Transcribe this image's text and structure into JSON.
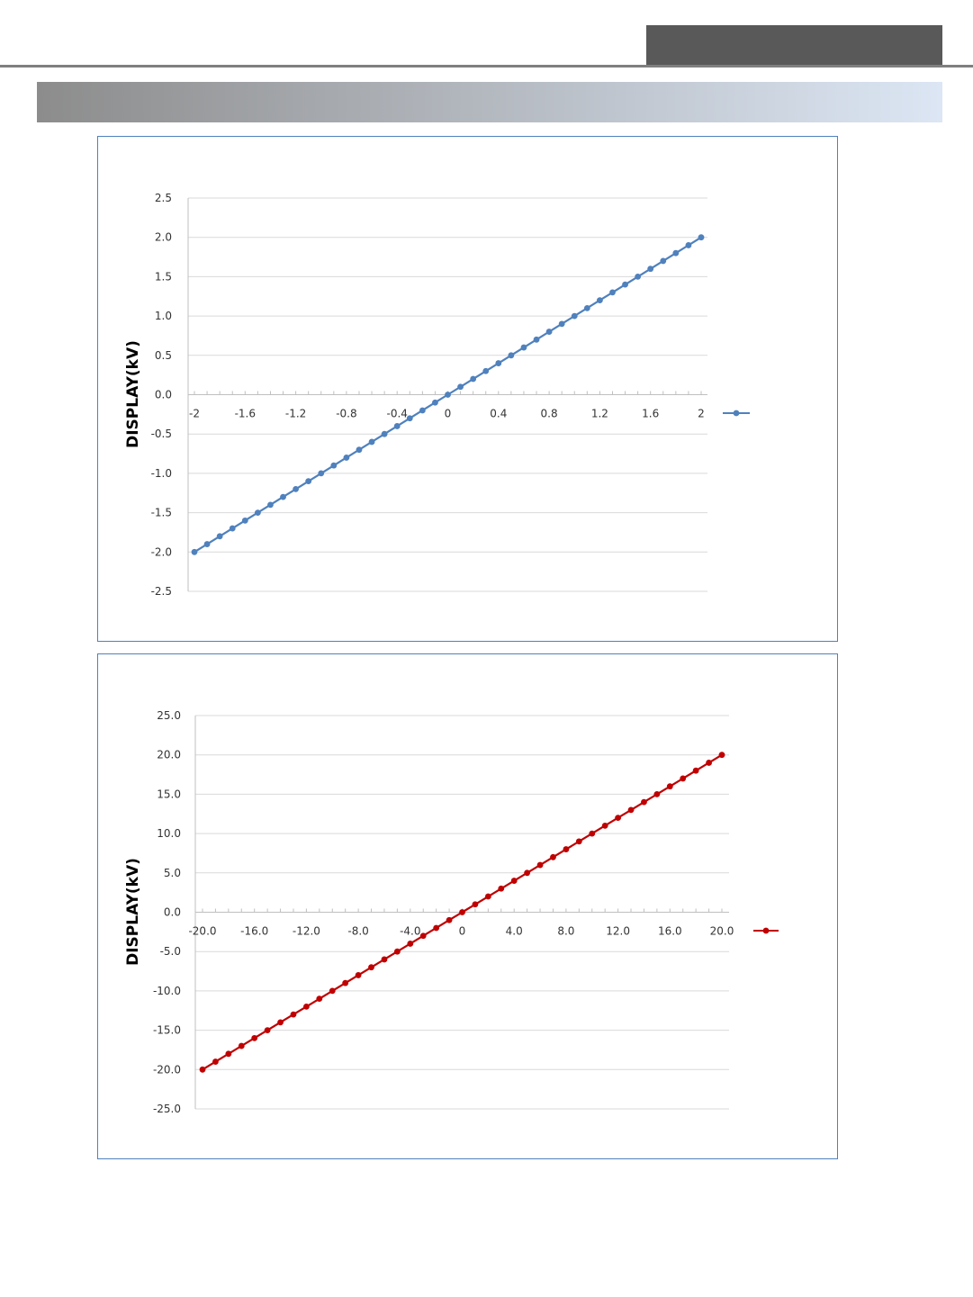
{
  "page": {
    "header_tab_color": "#595959",
    "header_rule_color": "#7f7f7f",
    "section_band_gradient": [
      "#8c8c8c",
      "#dce6f4"
    ],
    "frame_border_color": "#4f81bd"
  },
  "chart_data": [
    {
      "type": "line",
      "title": "",
      "xlabel": "",
      "ylabel": "DISPLAY(kV)",
      "x_ticks": [
        -2,
        -1.6,
        -1.2,
        -0.8,
        -0.4,
        0,
        0.4,
        0.8,
        1.2,
        1.6,
        2
      ],
      "x_tick_labels": [
        "-2",
        "-1.6",
        "-1.2",
        "-0.8",
        "-0.4",
        "0",
        "0.4",
        "0.8",
        "1.2",
        "1.6",
        "2"
      ],
      "y_ticks": [
        2.5,
        2.0,
        1.5,
        1.0,
        0.5,
        0.0,
        -0.5,
        -1.0,
        -1.5,
        -2.0,
        -2.5
      ],
      "y_tick_labels": [
        "2.5",
        "2.0",
        "1.5",
        "1.0",
        "0.5",
        "0.0",
        "-0.5",
        "-1.0",
        "-1.5",
        "-2.0",
        "-2.5"
      ],
      "xlim": [
        -2,
        2
      ],
      "ylim": [
        -2.5,
        2.5
      ],
      "grid": "horizontal",
      "legend": "right",
      "color": "#4f81bd",
      "series": [
        {
          "x": [
            -2.0,
            -1.9,
            -1.8,
            -1.7,
            -1.6,
            -1.5,
            -1.4,
            -1.3,
            -1.2,
            -1.1,
            -1.0,
            -0.9,
            -0.8,
            -0.7,
            -0.6,
            -0.5,
            -0.4,
            -0.3,
            -0.2,
            -0.1,
            0.0,
            0.1,
            0.2,
            0.3,
            0.4,
            0.5,
            0.6,
            0.7,
            0.8,
            0.9,
            1.0,
            1.1,
            1.2,
            1.3,
            1.4,
            1.5,
            1.6,
            1.7,
            1.8,
            1.9,
            2.0
          ],
          "y": [
            -2.0,
            -1.9,
            -1.8,
            -1.7,
            -1.6,
            -1.5,
            -1.4,
            -1.3,
            -1.2,
            -1.1,
            -1.0,
            -0.9,
            -0.8,
            -0.7,
            -0.6,
            -0.5,
            -0.4,
            -0.3,
            -0.2,
            -0.1,
            0.0,
            0.1,
            0.2,
            0.3,
            0.4,
            0.5,
            0.6,
            0.7,
            0.8,
            0.9,
            1.0,
            1.1,
            1.2,
            1.3,
            1.4,
            1.5,
            1.6,
            1.7,
            1.8,
            1.9,
            2.0
          ]
        }
      ]
    },
    {
      "type": "line",
      "title": "",
      "xlabel": "",
      "ylabel": "DISPLAY(kV)",
      "x_ticks": [
        -20,
        -16,
        -12,
        -8,
        -4,
        0,
        4,
        8,
        12,
        16,
        20
      ],
      "x_tick_labels": [
        "-20.0",
        "-16.0",
        "-12.0",
        "-8.0",
        "-4.0",
        "0",
        "4.0",
        "8.0",
        "12.0",
        "16.0",
        "20.0"
      ],
      "y_ticks": [
        25,
        20,
        15,
        10,
        5,
        0,
        -5,
        -10,
        -15,
        -20,
        -25
      ],
      "y_tick_labels": [
        "25.0",
        "20.0",
        "15.0",
        "10.0",
        "5.0",
        "0.0",
        "-5.0",
        "-10.0",
        "-15.0",
        "-20.0",
        "-25.0"
      ],
      "xlim": [
        -20,
        20
      ],
      "ylim": [
        -25,
        25
      ],
      "grid": "horizontal",
      "legend": "right",
      "color": "#c00000",
      "series": [
        {
          "x": [
            -20,
            -19,
            -18,
            -17,
            -16,
            -15,
            -14,
            -13,
            -12,
            -11,
            -10,
            -9,
            -8,
            -7,
            -6,
            -5,
            -4,
            -3,
            -2,
            -1,
            0,
            1,
            2,
            3,
            4,
            5,
            6,
            7,
            8,
            9,
            10,
            11,
            12,
            13,
            14,
            15,
            16,
            17,
            18,
            19,
            20
          ],
          "y": [
            -20,
            -19,
            -18,
            -17,
            -16,
            -15,
            -14,
            -13,
            -12,
            -11,
            -10,
            -9,
            -8,
            -7,
            -6,
            -5,
            -4,
            -3,
            -2,
            -1,
            0,
            1,
            2,
            3,
            4,
            5,
            6,
            7,
            8,
            9,
            10,
            11,
            12,
            13,
            14,
            15,
            16,
            17,
            18,
            19,
            20
          ]
        }
      ]
    }
  ]
}
